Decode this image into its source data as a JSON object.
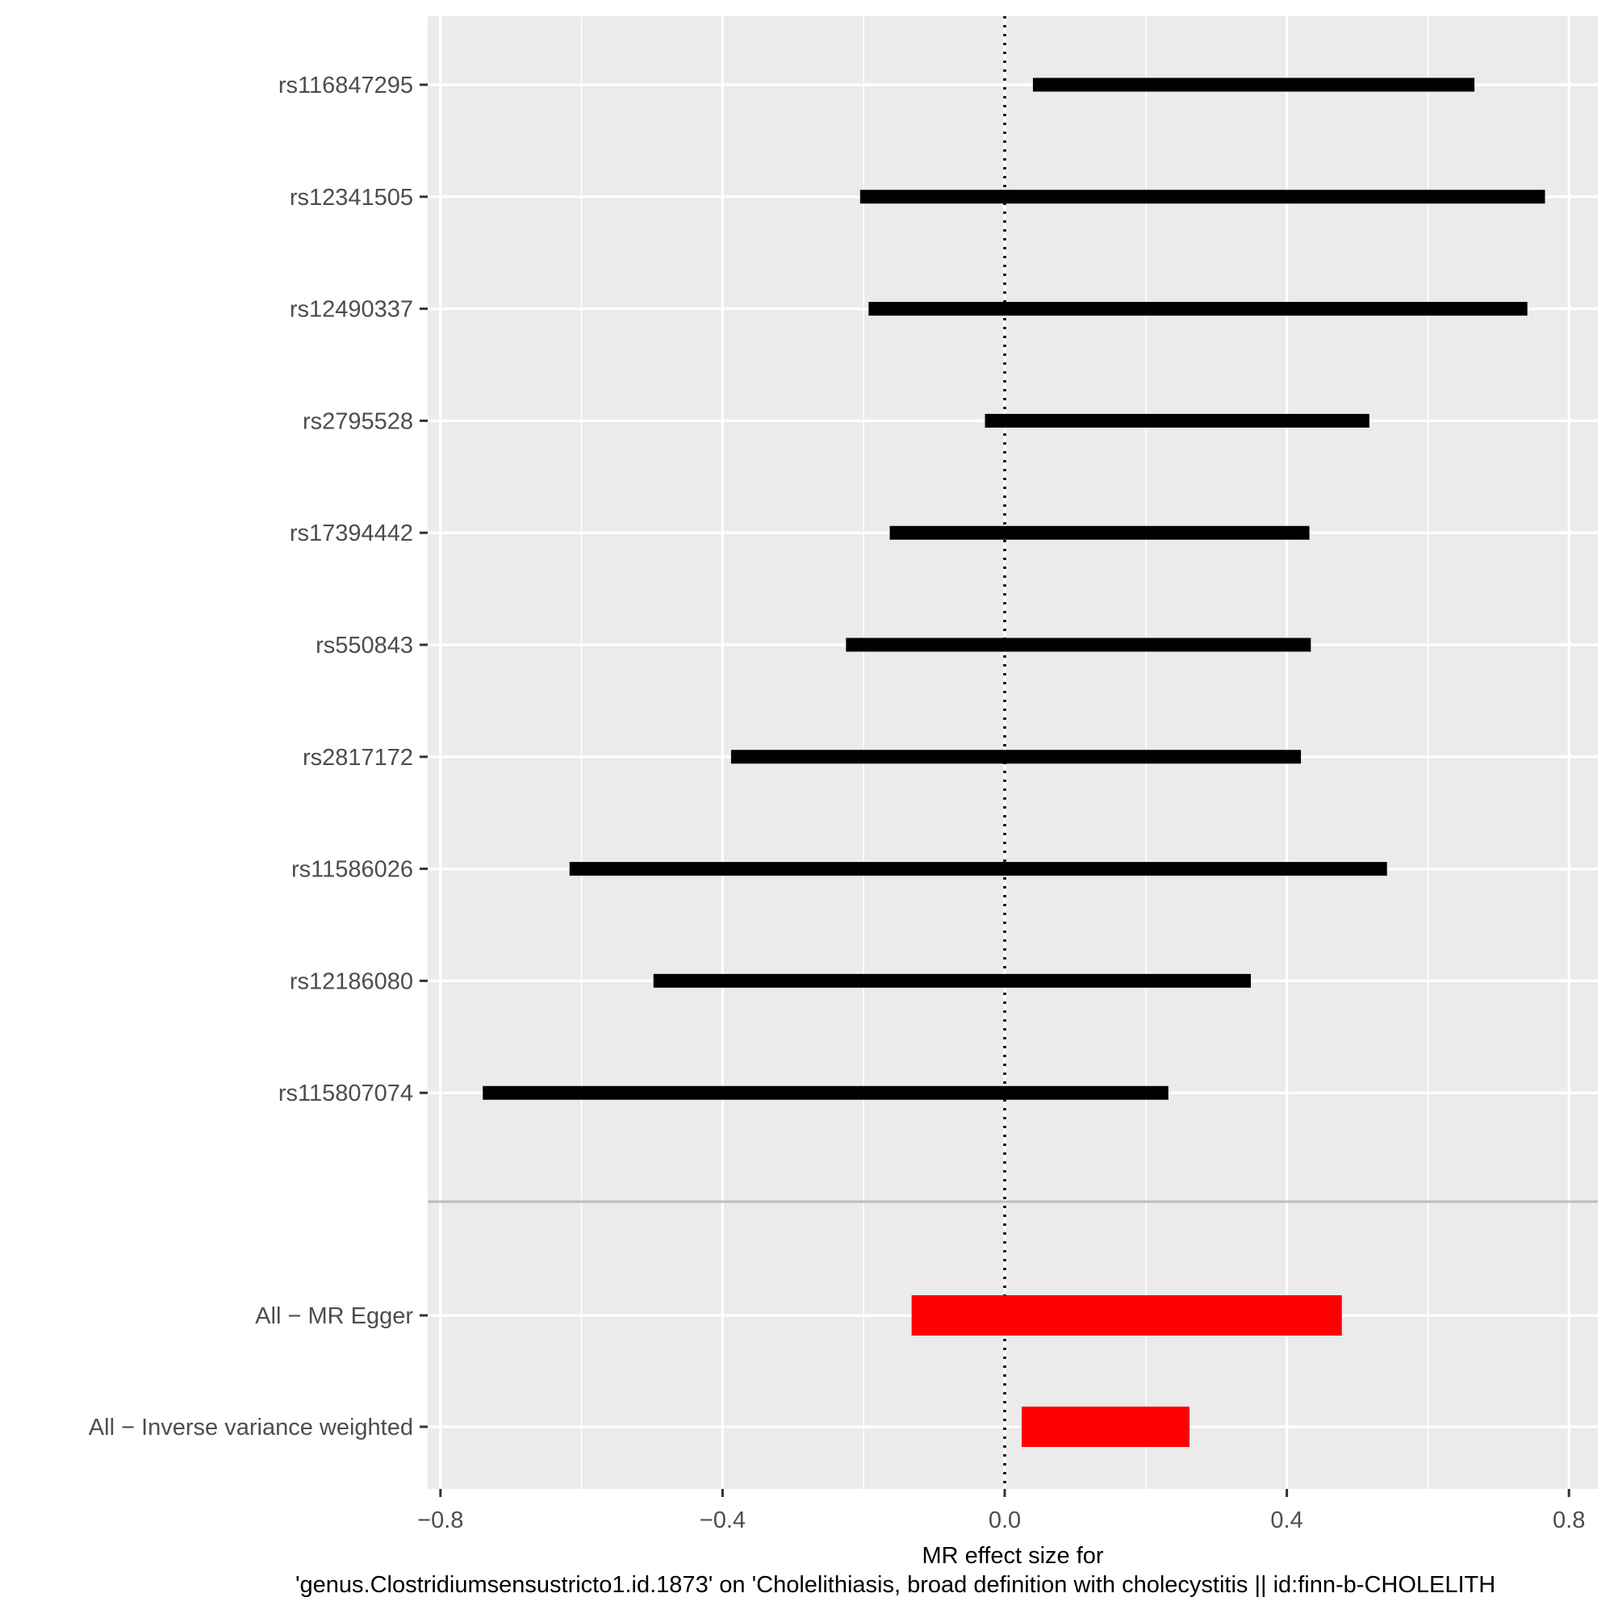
{
  "chart_data": {
    "type": "forest",
    "xlabel": "MR effect size for\n'genus.Clostridiumsensustricto1.id.1873' on 'Cholelithiasis, broad definition with cholecystitis || id:finn-b-CHOLELITH",
    "ylabel": "",
    "title": "",
    "xlim": [
      -0.82,
      0.82
    ],
    "xticks": [
      -0.8,
      -0.4,
      0.0,
      0.4,
      0.8
    ],
    "xtick_labels": [
      "−0.8",
      "−0.4",
      "0.0",
      "0.4",
      "0.8"
    ],
    "reference_line": 0,
    "grid": true,
    "panel_background": "#ebebeb",
    "grid_color": "#ffffff",
    "snp_color": "#000000",
    "summary_color": "#ff0000",
    "separator_color": "#bdbdbd",
    "rows": [
      {
        "label": "rs116847295",
        "estimate": 0.35,
        "lower": 0.04,
        "upper": 0.666,
        "group": "snp"
      },
      {
        "label": "rs12341505",
        "estimate": 0.28,
        "lower": -0.205,
        "upper": 0.766,
        "group": "snp"
      },
      {
        "label": "rs12490337",
        "estimate": 0.272,
        "lower": -0.193,
        "upper": 0.741,
        "group": "snp"
      },
      {
        "label": "rs2795528",
        "estimate": 0.245,
        "lower": -0.028,
        "upper": 0.517,
        "group": "snp"
      },
      {
        "label": "rs17394442",
        "estimate": 0.135,
        "lower": -0.163,
        "upper": 0.432,
        "group": "snp"
      },
      {
        "label": "rs550843",
        "estimate": 0.105,
        "lower": -0.225,
        "upper": 0.434,
        "group": "snp"
      },
      {
        "label": "rs2817172",
        "estimate": 0.015,
        "lower": -0.388,
        "upper": 0.42,
        "group": "snp"
      },
      {
        "label": "rs11586026",
        "estimate": -0.038,
        "lower": -0.617,
        "upper": 0.542,
        "group": "snp"
      },
      {
        "label": "rs12186080",
        "estimate": -0.077,
        "lower": -0.498,
        "upper": 0.349,
        "group": "snp"
      },
      {
        "label": "rs115807074",
        "estimate": -0.255,
        "lower": -0.74,
        "upper": 0.232,
        "group": "snp"
      },
      {
        "label": "All − MR Egger",
        "estimate": 0.173,
        "lower": -0.132,
        "upper": 0.478,
        "group": "summary"
      },
      {
        "label": "All − Inverse variance weighted",
        "estimate": 0.143,
        "lower": 0.024,
        "upper": 0.262,
        "group": "summary"
      }
    ]
  }
}
